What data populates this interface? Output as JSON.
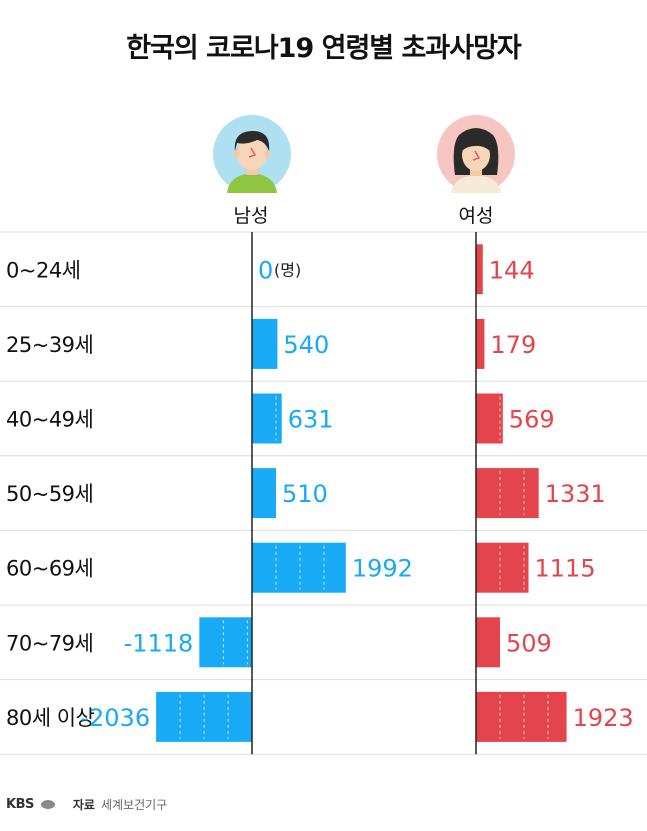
{
  "title": "한국의 코로나19 연령별 초과사망자",
  "columns": {
    "male_label": "남성",
    "female_label": "여성"
  },
  "unit_note": "(명)",
  "colors": {
    "male": "#19aaf5",
    "female": "#e4444c",
    "grid": "#dddddd",
    "axis": "#222222"
  },
  "avatars": {
    "male": "man-avatar-icon",
    "female": "woman-avatar-icon"
  },
  "chart_data": {
    "type": "bar",
    "title": "한국의 코로나19 연령별 초과사망자",
    "categories": [
      "0~24세",
      "25~39세",
      "40~49세",
      "50~59세",
      "60~69세",
      "70~79세",
      "80세 이상"
    ],
    "series": [
      {
        "name": "남성",
        "values": [
          0,
          540,
          631,
          510,
          1992,
          -1118,
          -2036
        ]
      },
      {
        "name": "여성",
        "values": [
          144,
          179,
          569,
          1331,
          1115,
          509,
          1923
        ]
      }
    ]
  },
  "source": {
    "logo": "KBS",
    "label": "자료",
    "value": "세계보건기구"
  }
}
